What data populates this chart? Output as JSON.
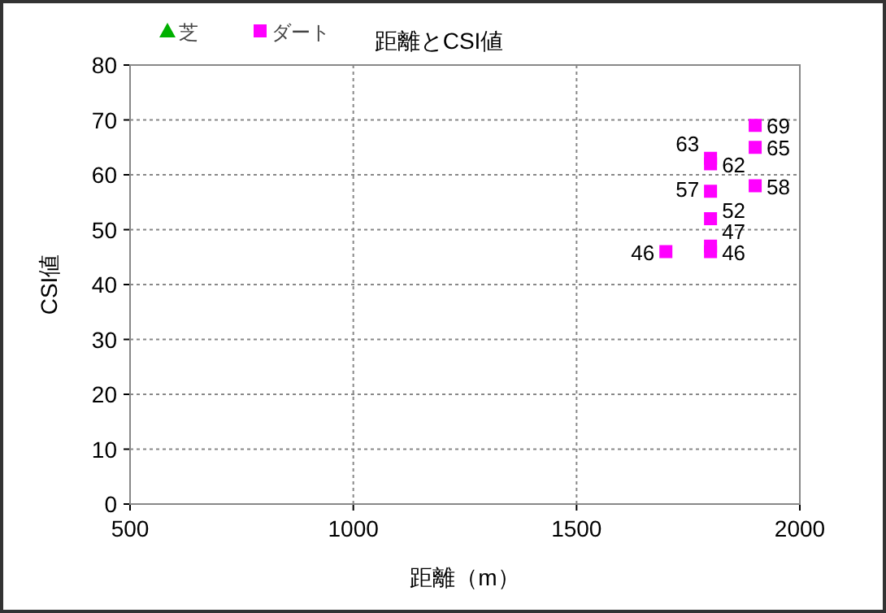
{
  "chart_data": {
    "type": "scatter",
    "title": "距離とCSI値",
    "xlabel": "距離（m）",
    "ylabel": "CSI値",
    "xlim": [
      500,
      2000
    ],
    "xticks": [
      500,
      1000,
      1500,
      2000
    ],
    "ylim": [
      0,
      80
    ],
    "yticks": [
      0,
      10,
      20,
      30,
      40,
      50,
      60,
      70,
      80
    ],
    "grid": true,
    "legend": "top left",
    "data_labels": true,
    "series": [
      {
        "name": "芝",
        "color": "#00b000",
        "marker": "triangle"
      },
      {
        "name": "ダート",
        "color": "#ff00ff",
        "marker": "square",
        "x": [
          1700,
          1800,
          1800,
          1800,
          1800,
          1800,
          1800,
          1900,
          1900,
          1900
        ],
        "values": [
          46,
          46,
          47,
          52,
          57,
          62,
          63,
          58,
          65,
          69
        ]
      }
    ]
  }
}
